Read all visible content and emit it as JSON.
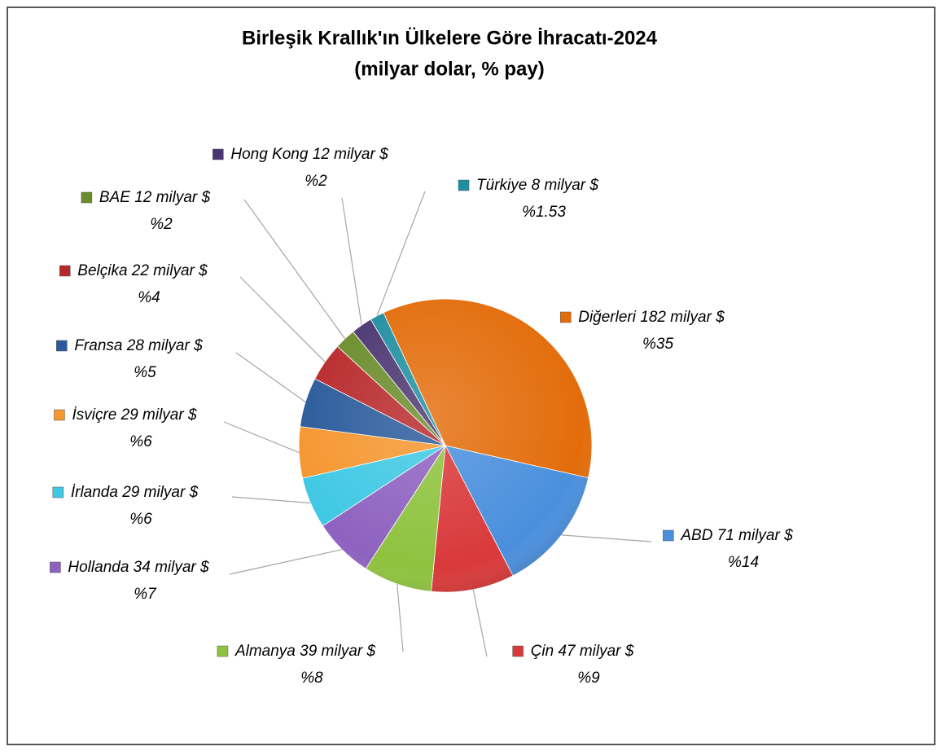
{
  "chart_data": {
    "type": "pie",
    "title": "Birleşik Krallık'ın Ülkelere Göre İhracatı-2024",
    "subtitle": "(milyar dolar, % pay)",
    "categories": [
      "Diğerleri",
      "ABD",
      "Çin",
      "Almanya",
      "Hollanda",
      "İrlanda",
      "İsviçre",
      "Fransa",
      "Belçika",
      "BAE",
      "Hong Kong",
      "Türkiye"
    ],
    "values": [
      182,
      71,
      47,
      39,
      34,
      29,
      29,
      28,
      22,
      12,
      12,
      8
    ],
    "value_labels": [
      "182 milyar $",
      "71 milyar $",
      "47 milyar $",
      "39 milyar $",
      "34 milyar $",
      "29 milyar $",
      "29 milyar $",
      "28 milyar $",
      "22 milyar $",
      "12 milyar $",
      "12 milyar $",
      "8 milyar $"
    ],
    "shares": [
      35,
      14,
      9,
      8,
      7,
      6,
      6,
      5,
      4,
      2,
      2,
      1.53
    ],
    "share_labels": [
      "%35",
      "%14",
      "%9",
      "%8",
      "%7",
      "%6",
      "%6",
      "%5",
      "%4",
      "%2",
      "%2",
      "%1.53"
    ],
    "colors": [
      "#e36c0a",
      "#4a8fdd",
      "#d9393a",
      "#8fc23f",
      "#8e62c0",
      "#3fc8e4",
      "#f5962f",
      "#2a5a9b",
      "#b8282a",
      "#6a8c2b",
      "#4a3570",
      "#1f8ea0"
    ]
  }
}
